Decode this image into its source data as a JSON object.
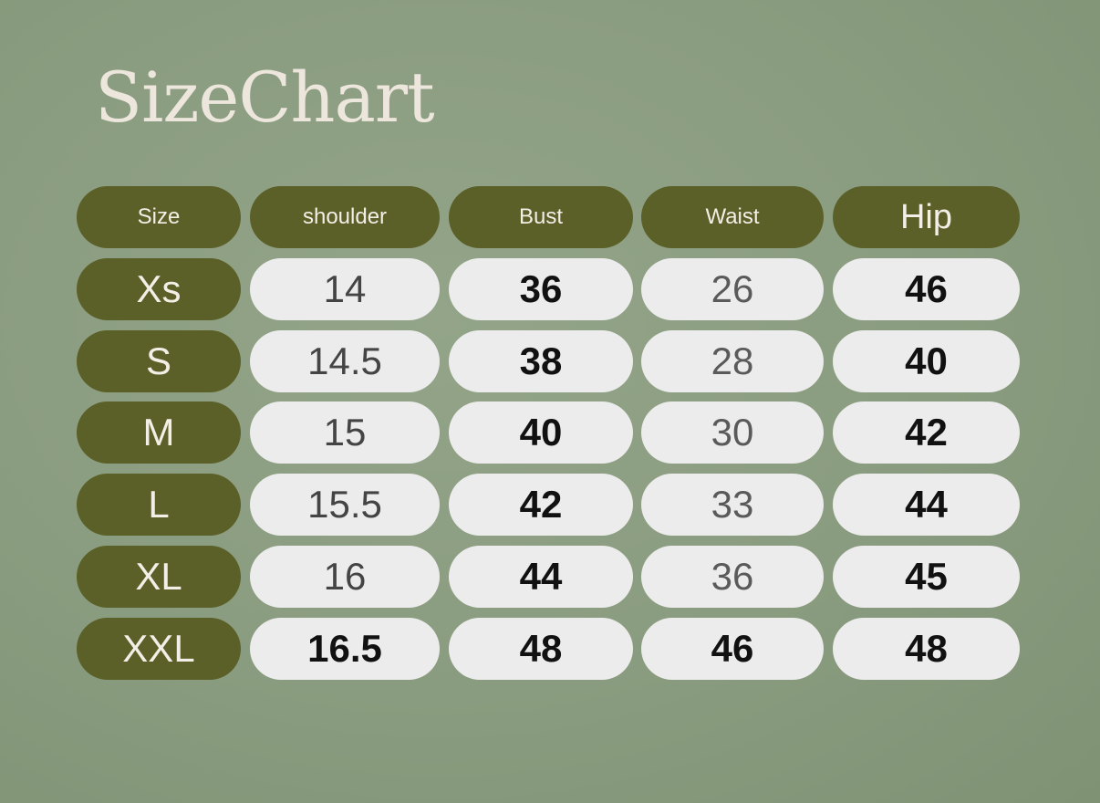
{
  "title": "SizeChart",
  "colors": {
    "background": "#8b9d80",
    "header_pill": "#5b5f28",
    "cell_pill": "#ececec",
    "title_text": "#ede6dc"
  },
  "table": {
    "headers": [
      "Size",
      "shoulder",
      "Bust",
      "Waist",
      "Hip"
    ],
    "rows": [
      {
        "size": "Xs",
        "values": [
          "14",
          "36",
          "26",
          "46"
        ],
        "bold": [
          false,
          true,
          false,
          true
        ]
      },
      {
        "size": "S",
        "values": [
          "14.5",
          "38",
          "28",
          "40"
        ],
        "bold": [
          false,
          true,
          false,
          true
        ]
      },
      {
        "size": "M",
        "values": [
          "15",
          "40",
          "30",
          "42"
        ],
        "bold": [
          false,
          true,
          false,
          true
        ]
      },
      {
        "size": "L",
        "values": [
          "15.5",
          "42",
          "33",
          "44"
        ],
        "bold": [
          false,
          true,
          false,
          true
        ]
      },
      {
        "size": "XL",
        "values": [
          "16",
          "44",
          "36",
          "45"
        ],
        "bold": [
          false,
          true,
          false,
          true
        ]
      },
      {
        "size": "XXL",
        "values": [
          "16.5",
          "48",
          "46",
          "48"
        ],
        "bold": [
          true,
          true,
          true,
          true
        ]
      }
    ]
  }
}
